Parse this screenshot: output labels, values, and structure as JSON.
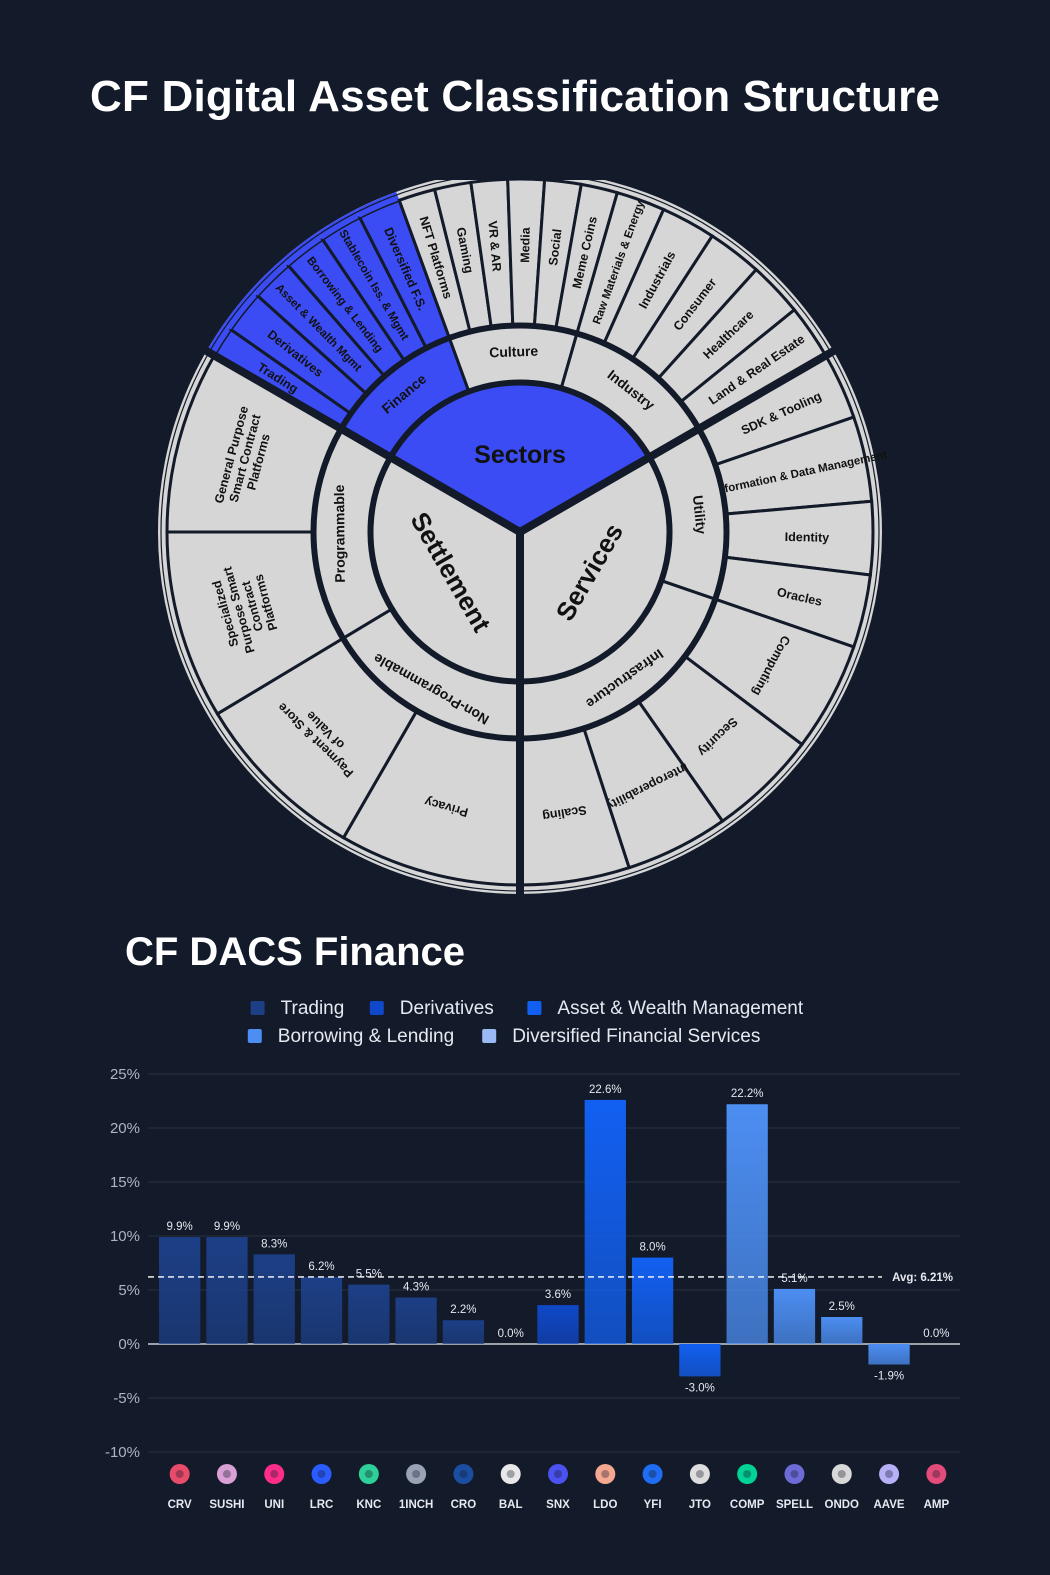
{
  "title": "CF Digital Asset Classification Structure",
  "subtitle": "CF DACS Finance",
  "colors": {
    "background": "#131a29",
    "segment": "#d6d6d6",
    "highlight": "#3b4cf5",
    "divider": "#131a29"
  },
  "sunburst": {
    "center_label": "Sectors",
    "sectors": [
      {
        "name": "Sectors",
        "highlight": true,
        "industries": [
          {
            "name": "Finance",
            "highlight": true,
            "subs": [
              "Trading",
              "Derivatives",
              "Asset & Wealth Mgmt",
              "Borrowing & Lending",
              "Stablecoin Iss. & Mgmt",
              "Diversified F.S."
            ]
          },
          {
            "name": "Culture",
            "highlight": false,
            "subs": [
              "NFT Platforms",
              "Gaming",
              "VR & AR",
              "Media",
              "Social",
              "Meme Coins"
            ]
          },
          {
            "name": "Industry",
            "highlight": false,
            "subs": [
              "Raw Materials & Energy",
              "Industrials",
              "Consumer",
              "Healthcare",
              "Land & Real Estate"
            ]
          }
        ]
      },
      {
        "name": "Services",
        "highlight": false,
        "industries": [
          {
            "name": "Utility",
            "highlight": false,
            "subs": [
              "SDK & Tooling",
              "Information & Data Management",
              "Identity",
              "Oracles"
            ]
          },
          {
            "name": "Infrastructure",
            "highlight": false,
            "subs": [
              "Computing",
              "Security",
              "Interoperability",
              "Scaling"
            ]
          }
        ]
      },
      {
        "name": "Settlement",
        "highlight": false,
        "industries": [
          {
            "name": "Non-Programmable",
            "highlight": false,
            "subs": [
              "Privacy",
              "Payment & Store of Value"
            ]
          },
          {
            "name": "Programmable",
            "highlight": false,
            "subs": [
              "Specialized Purpose Smart Contract Platforms",
              "General Purpose Smart Contract Platforms"
            ]
          }
        ]
      }
    ]
  },
  "chart_data": {
    "type": "bar",
    "title": "CF DACS Finance",
    "categories": [
      "CRV",
      "SUSHI",
      "UNI",
      "LRC",
      "KNC",
      "1INCH",
      "CRO",
      "BAL",
      "SNX",
      "LDO",
      "YFI",
      "JTO",
      "COMP",
      "SPELL",
      "ONDO",
      "AAVE",
      "AMP"
    ],
    "values": [
      9.9,
      9.9,
      8.3,
      6.2,
      5.5,
      4.3,
      2.2,
      0.0,
      3.6,
      22.6,
      8.0,
      -3.0,
      22.2,
      5.1,
      2.5,
      -1.9,
      0.0
    ],
    "value_labels": [
      "9.9%",
      "9.9%",
      "8.3%",
      "6.2%",
      "5.5%",
      "4.3%",
      "2.2%",
      "0.0%",
      "3.6%",
      "22.6%",
      "8.0%",
      "-3.0%",
      "22.2%",
      "5.1%",
      "2.5%",
      "-1.9%",
      "0.0%"
    ],
    "groups": [
      "Trading",
      "Trading",
      "Trading",
      "Trading",
      "Trading",
      "Trading",
      "Trading",
      "Derivatives",
      "Derivatives",
      "Asset & Wealth Management",
      "Asset & Wealth Management",
      "Asset & Wealth Management",
      "Borrowing & Lending",
      "Borrowing & Lending",
      "Borrowing & Lending",
      "Borrowing & Lending",
      "Diversified Financial Services"
    ],
    "legend": [
      {
        "name": "Trading",
        "color": "#1c3f86"
      },
      {
        "name": "Derivatives",
        "color": "#0f48c9"
      },
      {
        "name": "Asset & Wealth Management",
        "color": "#1260f2"
      },
      {
        "name": "Borrowing & Lending",
        "color": "#4c8ef2"
      },
      {
        "name": "Diversified Financial Services",
        "color": "#9bb9f4"
      }
    ],
    "ylim": [
      -10,
      25
    ],
    "yticks": [
      -10,
      -5,
      0,
      5,
      10,
      15,
      20,
      25
    ],
    "ytick_labels": [
      "-10%",
      "-5%",
      "0%",
      "5%",
      "10%",
      "15%",
      "20%",
      "25%"
    ],
    "average": 6.21,
    "average_label": "Avg: 6.21%",
    "xlabel": "",
    "ylabel": "",
    "grid": true,
    "legend_position": "top",
    "icons": [
      "crv-icon",
      "sushi-icon",
      "uni-icon",
      "lrc-icon",
      "knc-icon",
      "1inch-icon",
      "cro-icon",
      "bal-icon",
      "snx-icon",
      "ldo-icon",
      "yfi-icon",
      "jto-icon",
      "comp-icon",
      "spell-icon",
      "ondo-icon",
      "aave-icon",
      "amp-icon"
    ],
    "icon_colors": [
      "#e94b6a",
      "#d9a0d6",
      "#ff2d8a",
      "#2b5cff",
      "#2fcf99",
      "#9aa3b5",
      "#1b4ea3",
      "#e8e8e8",
      "#4b52f0",
      "#f6a792",
      "#1e6df2",
      "#dddddd",
      "#00d395",
      "#6e6ad8",
      "#d8d8d8",
      "#b6b0f6",
      "#e34b7a"
    ]
  }
}
